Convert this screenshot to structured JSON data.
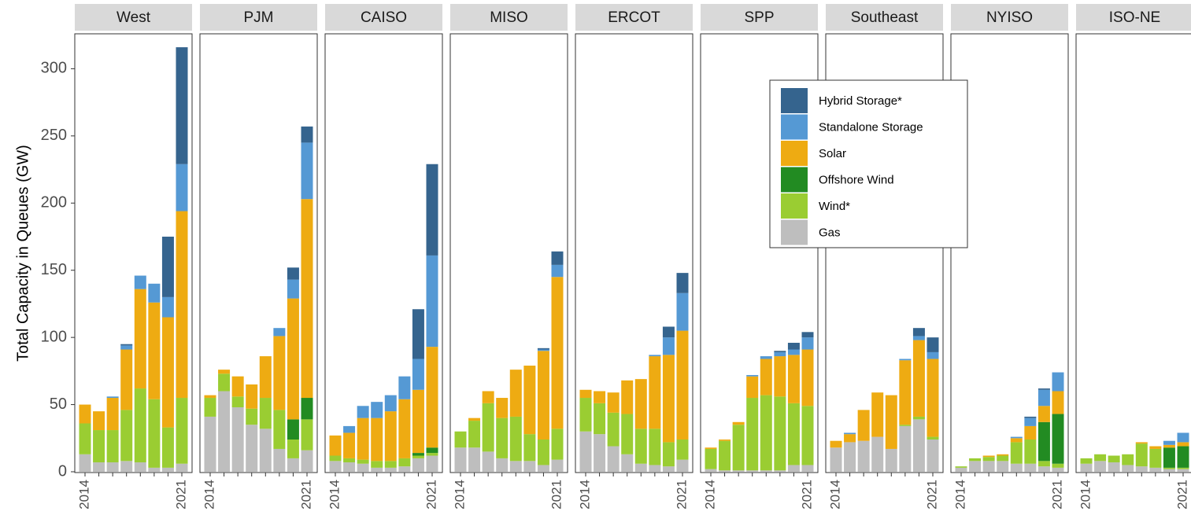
{
  "chart_data": {
    "type": "bar",
    "stacked": true,
    "grid": false,
    "y_label": "Total Capacity in Queues (GW)",
    "ylim": [
      0,
      326
    ],
    "yticks": [
      0,
      50,
      100,
      150,
      200,
      250,
      300
    ],
    "facets": [
      "West",
      "PJM",
      "CAISO",
      "MISO",
      "ERCOT",
      "SPP",
      "Southeast",
      "NYISO",
      "ISO-NE"
    ],
    "categories": [
      "2014",
      null,
      null,
      null,
      null,
      null,
      null,
      "2021"
    ],
    "legend_position": "inside-top-right",
    "series": [
      {
        "name": "Hybrid Storage*",
        "color": "#35648e",
        "values": [
          [
            0,
            0,
            0,
            1,
            0,
            0,
            45,
            87
          ],
          [
            0,
            0,
            0,
            0,
            0,
            0,
            9,
            12
          ],
          [
            0,
            0,
            0,
            0,
            0,
            0,
            37,
            68
          ],
          [
            0,
            0,
            0,
            0,
            0,
            0,
            1,
            10
          ],
          [
            0,
            0,
            0,
            0,
            0,
            0,
            8,
            15
          ],
          [
            0,
            0,
            0,
            0,
            0,
            1,
            5,
            4
          ],
          [
            0,
            0,
            0,
            0,
            0,
            0,
            6,
            11
          ],
          [
            0,
            0,
            0,
            0,
            0,
            1,
            1,
            0
          ],
          [
            0,
            0,
            0,
            0,
            0,
            0,
            0,
            0
          ]
        ]
      },
      {
        "name": "Standalone Storage",
        "color": "#5599d4",
        "values": [
          [
            0,
            0,
            1,
            3,
            10,
            14,
            15,
            35
          ],
          [
            0,
            0,
            0,
            0,
            0,
            6,
            14,
            42
          ],
          [
            0,
            5,
            9,
            12,
            12,
            17,
            23,
            68
          ],
          [
            0,
            0,
            0,
            0,
            0,
            0,
            1,
            9
          ],
          [
            0,
            0,
            0,
            0,
            0,
            1,
            13,
            28
          ],
          [
            0,
            0,
            0,
            1,
            2,
            3,
            4,
            9
          ],
          [
            0,
            1,
            0,
            0,
            0,
            1,
            3,
            5
          ],
          [
            0,
            0,
            0,
            0,
            1,
            6,
            12,
            14
          ],
          [
            0,
            0,
            0,
            0,
            0,
            0,
            3,
            7
          ]
        ]
      },
      {
        "name": "Solar",
        "color": "#eeab12",
        "values": [
          [
            14,
            14,
            24,
            45,
            74,
            72,
            82,
            139
          ],
          [
            2,
            3,
            15,
            18,
            31,
            55,
            90,
            148
          ],
          [
            15,
            19,
            31,
            32,
            37,
            44,
            47,
            75
          ],
          [
            0,
            2,
            9,
            15,
            35,
            51,
            66,
            113
          ],
          [
            6,
            9,
            15,
            25,
            37,
            54,
            65,
            81
          ],
          [
            1,
            1,
            2,
            16,
            27,
            30,
            36,
            42
          ],
          [
            5,
            6,
            23,
            33,
            40,
            48,
            57,
            58
          ],
          [
            0,
            0,
            1,
            1,
            3,
            10,
            12,
            17
          ],
          [
            0,
            0,
            0,
            0,
            1,
            2,
            2,
            3
          ]
        ]
      },
      {
        "name": "Offshore Wind",
        "color": "#228b22",
        "values": [
          [
            0,
            0,
            0,
            0,
            0,
            0,
            0,
            0
          ],
          [
            0,
            0,
            0,
            0,
            0,
            0,
            15,
            16
          ],
          [
            0,
            0,
            0,
            0,
            0,
            0,
            2,
            4
          ],
          [
            0,
            0,
            0,
            0,
            0,
            0,
            0,
            0
          ],
          [
            0,
            0,
            0,
            0,
            0,
            0,
            0,
            0
          ],
          [
            0,
            0,
            0,
            0,
            0,
            0,
            0,
            0
          ],
          [
            0,
            0,
            0,
            0,
            0,
            0,
            0,
            0
          ],
          [
            0,
            0,
            0,
            0,
            0,
            0,
            29,
            37
          ],
          [
            0,
            0,
            0,
            0,
            0,
            0,
            15,
            16
          ]
        ]
      },
      {
        "name": "Wind*",
        "color": "#9acd32",
        "values": [
          [
            23,
            24,
            24,
            38,
            55,
            51,
            30,
            49
          ],
          [
            14,
            13,
            8,
            12,
            23,
            29,
            14,
            23
          ],
          [
            4,
            3,
            3,
            5,
            5,
            6,
            2,
            2
          ],
          [
            12,
            20,
            36,
            30,
            33,
            20,
            19,
            23
          ],
          [
            25,
            23,
            25,
            30,
            26,
            27,
            18,
            15
          ],
          [
            15,
            22,
            34,
            54,
            56,
            55,
            46,
            44
          ],
          [
            0,
            0,
            0,
            0,
            0,
            1,
            2,
            2
          ],
          [
            1,
            2,
            3,
            4,
            16,
            18,
            4,
            3
          ],
          [
            4,
            5,
            5,
            8,
            17,
            14,
            1,
            1
          ]
        ]
      },
      {
        "name": "Gas",
        "color": "#bebebe",
        "values": [
          [
            13,
            7,
            7,
            8,
            7,
            3,
            3,
            6
          ],
          [
            41,
            60,
            48,
            35,
            32,
            17,
            10,
            16
          ],
          [
            8,
            7,
            6,
            3,
            3,
            4,
            10,
            12
          ],
          [
            18,
            18,
            15,
            10,
            8,
            8,
            5,
            9
          ],
          [
            30,
            28,
            19,
            13,
            6,
            5,
            4,
            9
          ],
          [
            2,
            1,
            1,
            1,
            1,
            1,
            5,
            5
          ],
          [
            18,
            22,
            23,
            26,
            17,
            34,
            39,
            24
          ],
          [
            3,
            8,
            8,
            8,
            6,
            6,
            4,
            3
          ],
          [
            6,
            8,
            7,
            5,
            4,
            3,
            2,
            2
          ]
        ]
      }
    ]
  }
}
